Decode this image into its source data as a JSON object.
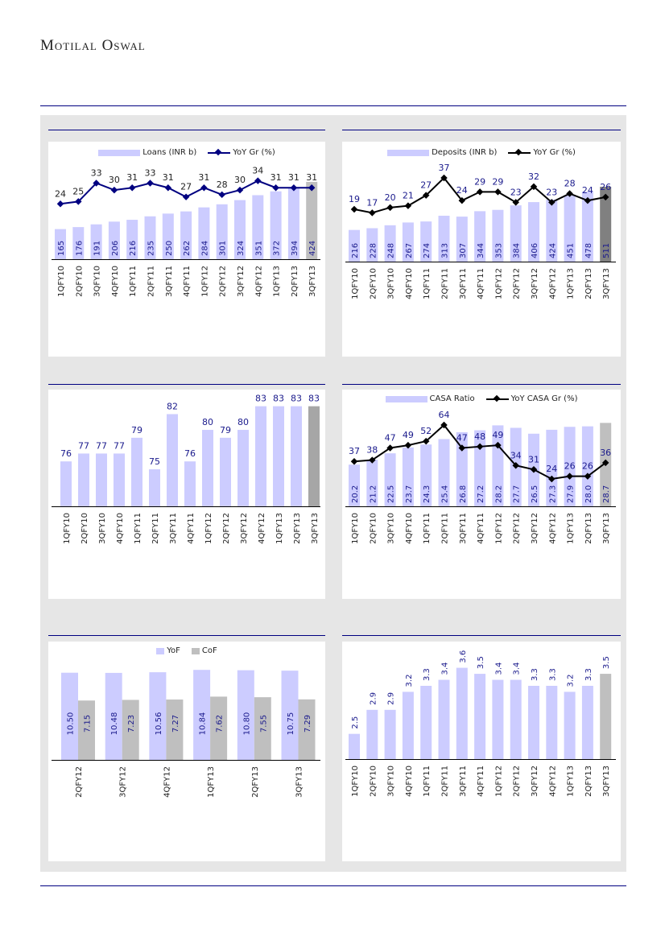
{
  "header": {
    "brand": "Motilal Oswal"
  },
  "colors": {
    "rule": "#000080",
    "bar": "#ccccff",
    "label": "#1a1a8c",
    "panel": "#e6e6e6"
  },
  "chart_data": [
    {
      "type": "bar+line",
      "categories": [
        "1QFY10",
        "2QFY10",
        "3QFY10",
        "4QFY10",
        "1QFY11",
        "2QFY11",
        "3QFY11",
        "4QFY11",
        "1QFY12",
        "2QFY12",
        "3QFY12",
        "4QFY12",
        "1QFY13",
        "2QFY13",
        "3QFY13"
      ],
      "series": [
        {
          "name": "Loans (INR b)",
          "kind": "bar",
          "values": [
            165,
            176,
            191,
            206,
            216,
            235,
            250,
            262,
            284,
            301,
            324,
            351,
            372,
            394,
            424
          ],
          "ylim": [
            0,
            556
          ],
          "color": "#ccccff",
          "highlight_last": "#bfbfbf"
        },
        {
          "name": "YoY Gr (%)",
          "kind": "line",
          "values": [
            24,
            25,
            33,
            30,
            31,
            33,
            31,
            27,
            31,
            28,
            30,
            34,
            31,
            31,
            31
          ],
          "ylim": [
            0,
            44
          ],
          "color": "#000080"
        }
      ],
      "legend": "top"
    },
    {
      "type": "bar+line",
      "categories": [
        "1QFY10",
        "2QFY10",
        "3QFY10",
        "4QFY10",
        "1QFY11",
        "2QFY11",
        "3QFY11",
        "4QFY11",
        "1QFY12",
        "2QFY12",
        "3QFY12",
        "4QFY12",
        "1QFY13",
        "2QFY13",
        "3QFY13"
      ],
      "series": [
        {
          "name": "Deposits (INR b)",
          "kind": "bar",
          "values": [
            216,
            228,
            248,
            267,
            274,
            313,
            307,
            344,
            353,
            384,
            406,
            424,
            451,
            478,
            511
          ],
          "ylim": [
            0,
            714
          ],
          "color": "#ccccff",
          "highlight_last": "#808080"
        },
        {
          "name": "YoY Gr (%)",
          "kind": "line",
          "values": [
            19,
            17,
            20,
            21,
            27,
            37,
            24,
            29,
            29,
            23,
            32,
            23,
            28,
            24,
            26
          ],
          "ylim": [
            -11,
            49
          ],
          "color": "#000000"
        }
      ],
      "legend": "top"
    },
    {
      "type": "bar",
      "categories": [
        "1QFY10",
        "2QFY10",
        "3QFY10",
        "4QFY10",
        "1QFY11",
        "2QFY11",
        "3QFY11",
        "4QFY11",
        "1QFY12",
        "2QFY12",
        "3QFY12",
        "4QFY12",
        "1QFY13",
        "2QFY13",
        "3QFY13"
      ],
      "series": [
        {
          "kind": "bar",
          "values": [
            76,
            77,
            77,
            77,
            79,
            75,
            82,
            76,
            80,
            79,
            80,
            83,
            83,
            83,
            83
          ],
          "ylim": [
            70.3,
            84.5
          ],
          "color": "#ccccff",
          "highlight_last": "#a6a6a6"
        }
      ]
    },
    {
      "type": "bar+line",
      "categories": [
        "1QFY10",
        "2QFY10",
        "3QFY10",
        "4QFY10",
        "1QFY11",
        "2QFY11",
        "3QFY11",
        "4QFY11",
        "1QFY12",
        "2QFY12",
        "3QFY12",
        "4QFY12",
        "1QFY13",
        "2QFY13",
        "3QFY13"
      ],
      "series": [
        {
          "name": "CASA Ratio",
          "kind": "bar",
          "values": [
            20.2,
            21.2,
            22.5,
            23.7,
            24.3,
            25.4,
            26.8,
            27.2,
            28.2,
            27.7,
            26.5,
            27.3,
            27.9,
            28.0,
            28.7
          ],
          "ylim": [
            11.7,
            34.5
          ],
          "color": "#ccccff",
          "highlight_last": "#bfbfbf"
        },
        {
          "name": "YoY CASA Gr (%)",
          "kind": "line",
          "values": [
            37,
            38,
            47,
            49,
            52,
            64,
            47,
            48,
            49,
            34,
            31,
            24,
            26,
            26,
            36
          ],
          "ylim": [
            3.7,
            86.7
          ],
          "color": "#000000"
        }
      ],
      "legend": "top"
    },
    {
      "type": "grouped-bar",
      "categories": [
        "2QFY12",
        "3QFY12",
        "4QFY12",
        "1QFY13",
        "2QFY13",
        "3QFY13"
      ],
      "series": [
        {
          "name": "YoF",
          "kind": "bar",
          "values": [
            10.5,
            10.48,
            10.56,
            10.84,
            10.8,
            10.75
          ],
          "ylim": [
            0,
            12.8
          ],
          "color": "#ccccff"
        },
        {
          "name": "CoF",
          "kind": "bar",
          "values": [
            7.15,
            7.23,
            7.27,
            7.62,
            7.55,
            7.29
          ],
          "ylim": [
            0,
            12.8
          ],
          "color": "#bfbfbf"
        }
      ],
      "legend": "top"
    },
    {
      "type": "bar",
      "categories": [
        "1QFY10",
        "2QFY10",
        "3QFY10",
        "4QFY10",
        "1QFY11",
        "2QFY11",
        "3QFY11",
        "4QFY11",
        "1QFY12",
        "2QFY12",
        "3QFY12",
        "4QFY12",
        "1QFY13",
        "2QFY13",
        "3QFY13"
      ],
      "series": [
        {
          "kind": "bar",
          "values": [
            2.5,
            2.9,
            2.9,
            3.2,
            3.3,
            3.4,
            3.6,
            3.5,
            3.4,
            3.4,
            3.3,
            3.3,
            3.2,
            3.3,
            3.5
          ],
          "ylim": [
            2.08,
            3.93
          ],
          "color": "#ccccff",
          "highlight_last": "#bfbfbf"
        }
      ]
    }
  ]
}
